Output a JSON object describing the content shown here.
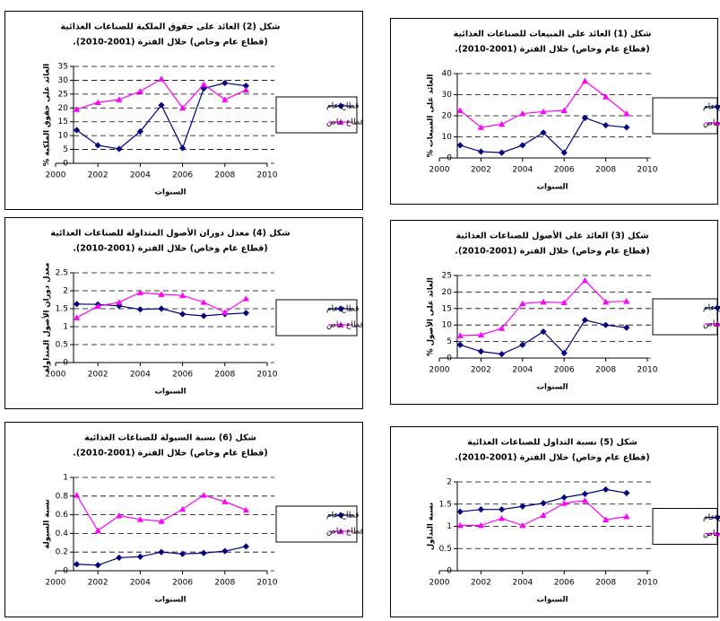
{
  "chart_data": [
    {
      "type": "line",
      "title": "شكل (1) العائد على المبيعات للصناعات الغذائية",
      "subtitle": "(قطاع عام وخاص) خلال الفترة (2001-2010).",
      "xlabel": "السنوات",
      "ylabel": "العائد على المبيعات %",
      "x": [
        2001,
        2002,
        2003,
        2004,
        2005,
        2006,
        2007,
        2008,
        2009
      ],
      "xlim": [
        2000,
        2010
      ],
      "xticks": [
        2000,
        2002,
        2004,
        2006,
        2008,
        2010
      ],
      "ylim": [
        0,
        40
      ],
      "yticks": [
        0,
        10,
        20,
        30,
        40
      ],
      "grid": true,
      "legend": "right",
      "series": [
        {
          "name": "قطاع عام",
          "color": "#000080",
          "marker": "diamond",
          "values": [
            6,
            3,
            2.5,
            6,
            12,
            2.5,
            19,
            15.5,
            14.5
          ]
        },
        {
          "name": "قطاع خاص",
          "color": "#ff00ff",
          "marker": "triangle",
          "values": [
            22.5,
            14.5,
            16,
            21,
            22,
            22.5,
            36.5,
            29,
            21
          ]
        }
      ]
    },
    {
      "type": "line",
      "title": "شكل (2) العائد على حقوق الملكية للصناعات الغذائية",
      "subtitle": "(قطاع عام وخاص) خلال الفترة (2001-2010).",
      "xlabel": "السنوات",
      "ylabel": "العائد على حقوق الملكية %",
      "x": [
        2001,
        2002,
        2003,
        2004,
        2005,
        2006,
        2007,
        2008,
        2009
      ],
      "xlim": [
        2000,
        2010
      ],
      "xticks": [
        2000,
        2002,
        2004,
        2006,
        2008,
        2010
      ],
      "ylim": [
        0,
        35
      ],
      "yticks": [
        0,
        5,
        10,
        15,
        20,
        25,
        30,
        35
      ],
      "grid": true,
      "legend": "right",
      "series": [
        {
          "name": "قطاع عام",
          "color": "#000080",
          "marker": "diamond",
          "values": [
            12,
            6.5,
            5.2,
            11.5,
            21,
            5.5,
            27,
            29,
            28
          ]
        },
        {
          "name": "قطاع خاص",
          "color": "#ff00ff",
          "marker": "triangle",
          "values": [
            19.5,
            22,
            23,
            26,
            30.5,
            20,
            28.5,
            23,
            26.5
          ]
        }
      ]
    },
    {
      "type": "line",
      "title": "شكل (3) العائد على الأصول للصناعات الغذائية",
      "subtitle": "(قطاع عام وخاص) خلال الفترة (2001-2010).",
      "xlabel": "السنوات",
      "ylabel": "العائد على الأصول %",
      "x": [
        2001,
        2002,
        2003,
        2004,
        2005,
        2006,
        2007,
        2008,
        2009
      ],
      "xlim": [
        2000,
        2010
      ],
      "xticks": [
        2000,
        2002,
        2004,
        2006,
        2008,
        2010
      ],
      "ylim": [
        0,
        25
      ],
      "yticks": [
        0,
        5,
        10,
        15,
        20,
        25
      ],
      "grid": true,
      "legend": "right",
      "series": [
        {
          "name": "قطاع عام",
          "color": "#000080",
          "marker": "diamond",
          "values": [
            4,
            2,
            1.2,
            4,
            8,
            1.5,
            11.5,
            10,
            9.2
          ]
        },
        {
          "name": "قطاع خاص",
          "color": "#ff00ff",
          "marker": "triangle",
          "values": [
            6.8,
            7,
            9,
            16.5,
            17,
            16.8,
            23.5,
            17,
            17.2
          ]
        }
      ]
    },
    {
      "type": "line",
      "title": "شكل (4) معدل دوران الأصول المتداولة للصناعات الغذائية",
      "subtitle": "(قطاع عام وخاص) خلال الفترة (2001-2010).",
      "xlabel": "السنوات",
      "ylabel": "معدل دوران الأصول المتداولة",
      "x": [
        2001,
        2002,
        2003,
        2004,
        2005,
        2006,
        2007,
        2008,
        2009
      ],
      "xlim": [
        2000,
        2010
      ],
      "xticks": [
        2000,
        2002,
        2004,
        2006,
        2008,
        2010
      ],
      "ylim": [
        0,
        2.5
      ],
      "yticks": [
        0,
        0.5,
        1,
        1.5,
        2,
        2.5
      ],
      "grid": true,
      "legend": "right",
      "series": [
        {
          "name": "قطاع عام",
          "color": "#000080",
          "marker": "diamond",
          "values": [
            1.63,
            1.62,
            1.58,
            1.48,
            1.5,
            1.35,
            1.3,
            1.35,
            1.38
          ]
        },
        {
          "name": "قطاع خاص",
          "color": "#ff00ff",
          "marker": "triangle",
          "values": [
            1.25,
            1.57,
            1.68,
            1.95,
            1.9,
            1.87,
            1.68,
            1.4,
            1.78
          ]
        }
      ]
    },
    {
      "type": "line",
      "title": "شكل (5) نسبة التداول للصناعات الغذائية",
      "subtitle": "(قطاع عام وخاص) خلال الفترة (2001-2010).",
      "xlabel": "السنوات",
      "ylabel": "نسبة التداول",
      "x": [
        2001,
        2002,
        2003,
        2004,
        2005,
        2006,
        2007,
        2008,
        2009
      ],
      "xlim": [
        2000,
        2010
      ],
      "xticks": [
        2000,
        2002,
        2004,
        2006,
        2008,
        2010
      ],
      "ylim": [
        0,
        2
      ],
      "yticks": [
        0,
        0.5,
        1,
        1.5,
        2
      ],
      "grid": true,
      "legend": "right",
      "series": [
        {
          "name": "قطاع عام",
          "color": "#000080",
          "marker": "diamond",
          "values": [
            1.33,
            1.38,
            1.38,
            1.45,
            1.52,
            1.65,
            1.73,
            1.83,
            1.75
          ]
        },
        {
          "name": "قطاع خاص",
          "color": "#ff00ff",
          "marker": "triangle",
          "values": [
            1.02,
            1.02,
            1.18,
            1.02,
            1.25,
            1.52,
            1.58,
            1.15,
            1.22
          ]
        }
      ]
    },
    {
      "type": "line",
      "title": "شكل (6) نسبة السيولة للصناعات الغذائية",
      "subtitle": "(قطاع عام وخاص) خلال الفترة (2001-2010).",
      "xlabel": "السنوات",
      "ylabel": "نسبة السيولة",
      "x": [
        2001,
        2002,
        2003,
        2004,
        2005,
        2006,
        2007,
        2008,
        2009
      ],
      "xlim": [
        2000,
        2010
      ],
      "xticks": [
        2000,
        2002,
        2004,
        2006,
        2008,
        2010
      ],
      "ylim": [
        0,
        1
      ],
      "yticks": [
        0,
        0.2,
        0.4,
        0.6,
        0.8,
        1
      ],
      "grid": true,
      "legend": "right",
      "series": [
        {
          "name": "قطاع عام",
          "color": "#000080",
          "marker": "diamond",
          "values": [
            0.07,
            0.06,
            0.14,
            0.15,
            0.2,
            0.18,
            0.19,
            0.21,
            0.26
          ]
        },
        {
          "name": "قطاع خاص",
          "color": "#ff00ff",
          "marker": "triangle",
          "values": [
            0.81,
            0.43,
            0.59,
            0.55,
            0.53,
            0.66,
            0.81,
            0.74,
            0.65
          ]
        }
      ]
    }
  ]
}
